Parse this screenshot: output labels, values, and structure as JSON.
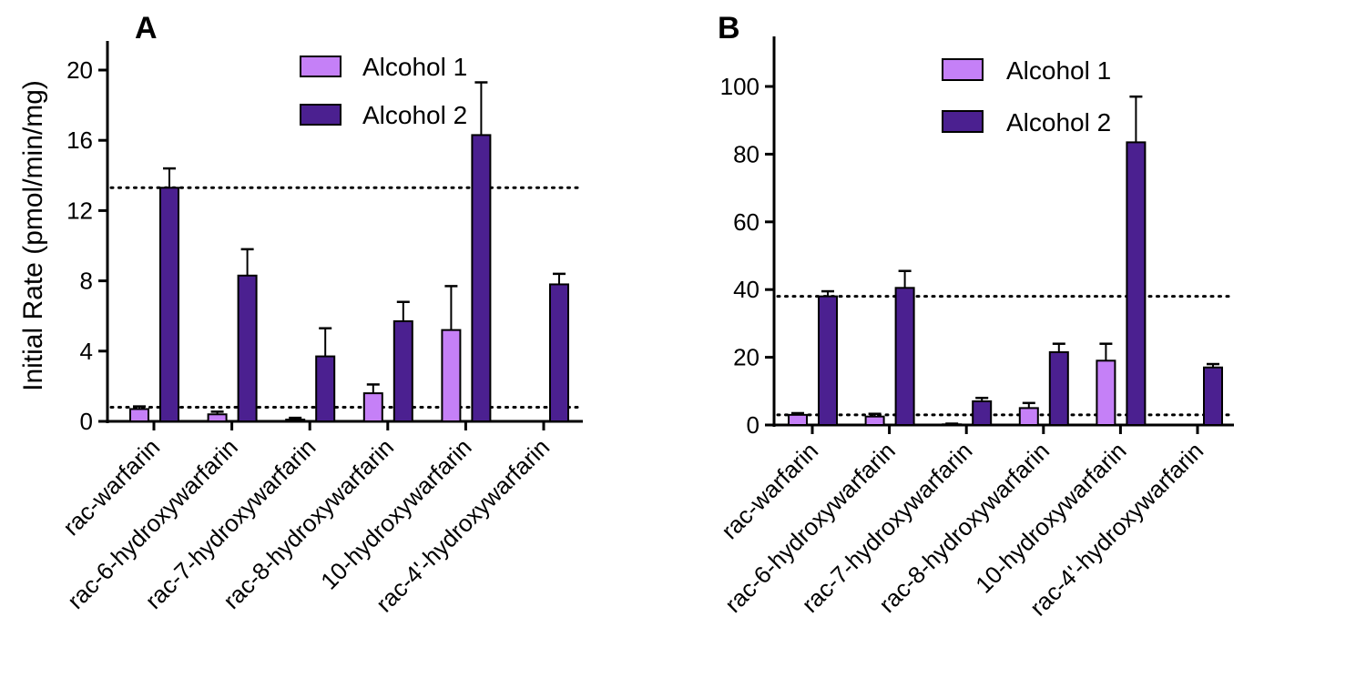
{
  "chart_data": [
    {
      "panel": "A",
      "type": "bar",
      "ylabel": "Initial Rate (pmol/min/mg)",
      "ylim": [
        0,
        21
      ],
      "yticks": [
        0,
        4,
        8,
        12,
        16,
        20
      ],
      "categories": [
        "rac-warfarin",
        "rac-6-hydroxywarfarin",
        "rac-7-hydroxywarfarin",
        "rac-8-hydroxywarfarin",
        "10-hydroxywarfarin",
        "rac-4'-hydroxywarfarin"
      ],
      "series": [
        {
          "name": "Alcohol 1",
          "color": "#c580f7",
          "values": [
            0.7,
            0.4,
            0.1,
            1.6,
            5.2,
            0
          ],
          "errors": [
            0.15,
            0.15,
            0.1,
            0.5,
            2.5,
            0
          ]
        },
        {
          "name": "Alcohol 2",
          "color": "#4b2090",
          "values": [
            13.3,
            8.3,
            3.7,
            5.7,
            16.3,
            7.8
          ],
          "errors": [
            1.1,
            1.5,
            1.6,
            1.1,
            3.0,
            0.6
          ]
        }
      ],
      "reference_lines": [
        13.3,
        0.8
      ],
      "legend": "top-center"
    },
    {
      "panel": "B",
      "type": "bar",
      "ylabel": "",
      "ylim": [
        0,
        113
      ],
      "yticks": [
        0,
        20,
        40,
        60,
        80,
        100
      ],
      "categories": [
        "rac-warfarin",
        "rac-6-hydroxywarfarin",
        "rac-7-hydroxywarfarin",
        "rac-8-hydroxywarfarin",
        "10-hydroxywarfarin",
        "rac-4'-hydroxywarfarin"
      ],
      "series": [
        {
          "name": "Alcohol 1",
          "color": "#c580f7",
          "values": [
            3.0,
            2.5,
            0.2,
            5.0,
            19.0,
            0
          ],
          "errors": [
            0.5,
            0.8,
            0.2,
            1.5,
            5.0,
            0
          ]
        },
        {
          "name": "Alcohol 2",
          "color": "#4b2090",
          "values": [
            38.0,
            40.5,
            7.0,
            21.5,
            83.5,
            17.0
          ],
          "errors": [
            1.5,
            5.0,
            1.0,
            2.5,
            13.5,
            1.0
          ]
        }
      ],
      "reference_lines": [
        38,
        3
      ],
      "legend": "top-center"
    }
  ]
}
